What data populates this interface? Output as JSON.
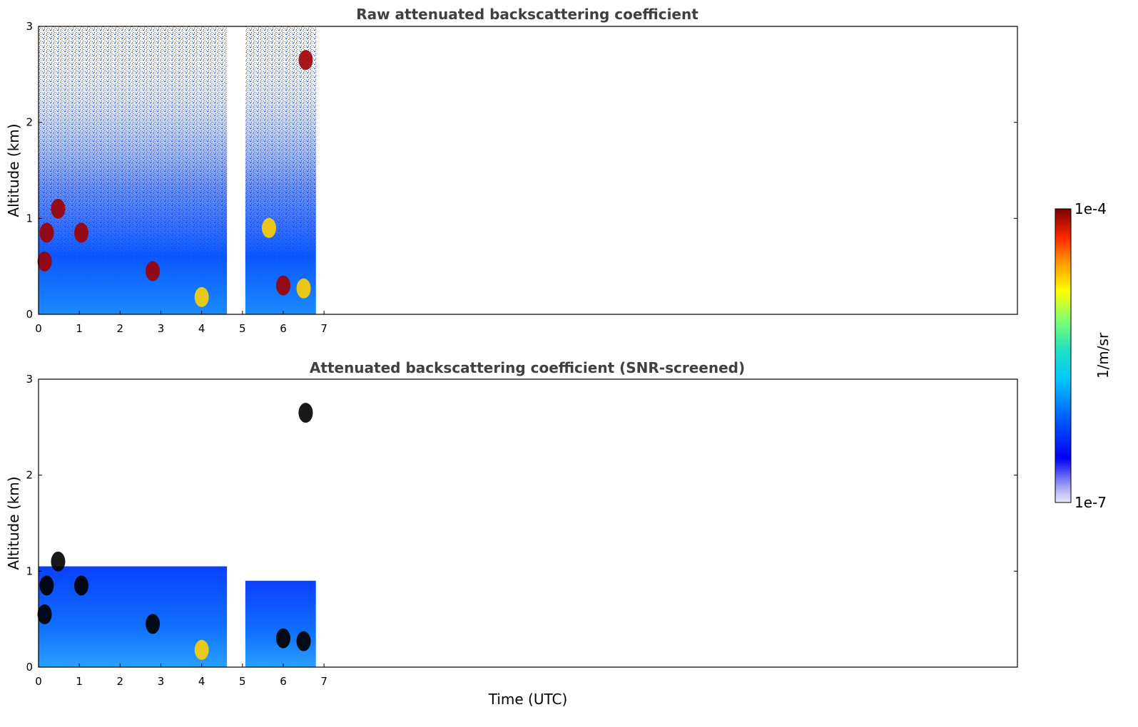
{
  "chart_data": [
    {
      "type": "heatmap",
      "title": "Raw attenuated backscattering coefficient",
      "xlabel": "",
      "ylabel": "Altitude (km)",
      "xlim": [
        0,
        24
      ],
      "ylim": [
        0,
        3
      ],
      "xticks": [
        "0",
        "1",
        "2",
        "3",
        "4",
        "5",
        "6",
        "7"
      ],
      "yticks": [
        "0",
        "1",
        "2",
        "3"
      ],
      "data_gap_hours": [
        4.62,
        5.07
      ],
      "data_end_hour": 6.8,
      "screened": false,
      "noisy_top_km": 3.0,
      "features": [
        {
          "t": 0.48,
          "alt": 1.1,
          "level": "high"
        },
        {
          "t": 0.2,
          "alt": 0.85,
          "level": "high"
        },
        {
          "t": 0.15,
          "alt": 0.55,
          "level": "high"
        },
        {
          "t": 1.05,
          "alt": 0.85,
          "level": "high"
        },
        {
          "t": 2.8,
          "alt": 0.45,
          "level": "high"
        },
        {
          "t": 4.0,
          "alt": 0.18,
          "level": "mid"
        },
        {
          "t": 5.65,
          "alt": 0.9,
          "level": "mid"
        },
        {
          "t": 6.0,
          "alt": 0.3,
          "level": "high"
        },
        {
          "t": 6.5,
          "alt": 0.27,
          "level": "mid"
        },
        {
          "t": 6.55,
          "alt": 2.65,
          "level": "high"
        }
      ]
    },
    {
      "type": "heatmap",
      "title": "Attenuated backscattering coefficient (SNR-screened)",
      "xlabel": "Time (UTC)",
      "ylabel": "Altitude (km)",
      "xlim": [
        0,
        24
      ],
      "ylim": [
        0,
        3
      ],
      "xticks": [
        "0",
        "1",
        "2",
        "3",
        "4",
        "5",
        "6",
        "7"
      ],
      "yticks": [
        "0",
        "1",
        "2",
        "3"
      ],
      "data_gap_hours": [
        4.62,
        5.07
      ],
      "data_end_hour": 6.8,
      "screened": true,
      "boundary_layer_top_km": 1.0,
      "features": [
        {
          "t": 0.48,
          "alt": 1.1,
          "level": "saturated"
        },
        {
          "t": 0.2,
          "alt": 0.85,
          "level": "saturated"
        },
        {
          "t": 0.15,
          "alt": 0.55,
          "level": "saturated"
        },
        {
          "t": 1.05,
          "alt": 0.85,
          "level": "saturated"
        },
        {
          "t": 2.8,
          "alt": 0.45,
          "level": "saturated"
        },
        {
          "t": 4.0,
          "alt": 0.18,
          "level": "mid"
        },
        {
          "t": 6.0,
          "alt": 0.3,
          "level": "saturated"
        },
        {
          "t": 6.5,
          "alt": 0.27,
          "level": "saturated"
        },
        {
          "t": 6.55,
          "alt": 2.65,
          "level": "saturated"
        }
      ]
    }
  ],
  "colorbar": {
    "label": "1/m/sr",
    "max_label": "1e-4",
    "min_label": "1e-7",
    "colormap": "jet",
    "scale": "log",
    "range": [
      1e-07,
      0.0001
    ]
  }
}
